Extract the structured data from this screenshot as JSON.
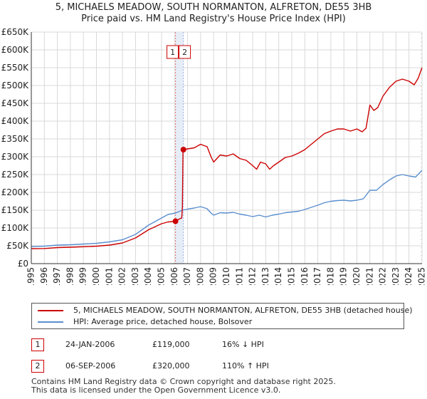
{
  "title_line1": "5, MICHAELS MEADOW, SOUTH NORMANTON, ALFRETON, DE55 3HB",
  "title_line2": "Price paid vs. HM Land Registry's House Price Index (HPI)",
  "colors": {
    "red": "#cc0000",
    "blue": "#5b8fcf",
    "grid": "#d9d9d9",
    "shade": "#dde6f4"
  },
  "chart_data": {
    "type": "line",
    "title": "5, MICHAELS MEADOW, SOUTH NORMANTON, ALFRETON, DE55 3HB — Price paid vs. HM Land Registry's House Price Index (HPI)",
    "xlabel": "",
    "ylabel": "",
    "xlim": [
      1995,
      2025
    ],
    "ylim": [
      0,
      650000
    ],
    "y_ticks": [
      0,
      50000,
      100000,
      150000,
      200000,
      250000,
      300000,
      350000,
      400000,
      450000,
      500000,
      550000,
      600000,
      650000
    ],
    "y_tick_labels": [
      "£0",
      "£50K",
      "£100K",
      "£150K",
      "£200K",
      "£250K",
      "£300K",
      "£350K",
      "£400K",
      "£450K",
      "£500K",
      "£550K",
      "£600K",
      "£650K"
    ],
    "x_ticks": [
      1995,
      1996,
      1997,
      1998,
      1999,
      2000,
      2001,
      2002,
      2003,
      2004,
      2005,
      2006,
      2007,
      2008,
      2009,
      2010,
      2011,
      2012,
      2013,
      2014,
      2015,
      2016,
      2017,
      2018,
      2019,
      2020,
      2021,
      2022,
      2023,
      2024,
      2025
    ],
    "x_tick_labels": [
      "1995",
      "1996",
      "1997",
      "1998",
      "1999",
      "2000",
      "2001",
      "2002",
      "2003",
      "2004",
      "2005",
      "2006",
      "2007",
      "2008",
      "2009",
      "2010",
      "2011",
      "2012",
      "2013",
      "2014",
      "2015",
      "2016",
      "2017",
      "2018",
      "2019",
      "2020",
      "2021",
      "2022",
      "2023",
      "2024",
      "2025"
    ],
    "grid": true,
    "series": [
      {
        "name": "5, MICHAELS MEADOW, SOUTH NORMANTON, ALFRETON, DE55 3HB (detached house)",
        "color": "#cc0000",
        "points": [
          [
            1995.0,
            42000
          ],
          [
            1996.0,
            42500
          ],
          [
            1997.0,
            45000
          ],
          [
            1998.0,
            46000
          ],
          [
            1999.0,
            47500
          ],
          [
            2000.0,
            49000
          ],
          [
            2001.0,
            52000
          ],
          [
            2002.0,
            58000
          ],
          [
            2003.0,
            72000
          ],
          [
            2004.0,
            95000
          ],
          [
            2005.0,
            112000
          ],
          [
            2005.5,
            117000
          ],
          [
            2006.07,
            119000
          ],
          [
            2006.4,
            126000
          ],
          [
            2006.55,
            128000
          ],
          [
            2006.6,
            160000
          ],
          [
            2006.65,
            320000
          ],
          [
            2007.0,
            322000
          ],
          [
            2007.5,
            325000
          ],
          [
            2008.0,
            335000
          ],
          [
            2008.5,
            328000
          ],
          [
            2008.8,
            300000
          ],
          [
            2009.0,
            285000
          ],
          [
            2009.5,
            305000
          ],
          [
            2010.0,
            302000
          ],
          [
            2010.5,
            308000
          ],
          [
            2011.0,
            295000
          ],
          [
            2011.5,
            290000
          ],
          [
            2012.0,
            275000
          ],
          [
            2012.3,
            265000
          ],
          [
            2012.6,
            285000
          ],
          [
            2013.0,
            280000
          ],
          [
            2013.3,
            265000
          ],
          [
            2013.6,
            275000
          ],
          [
            2014.0,
            285000
          ],
          [
            2014.5,
            298000
          ],
          [
            2015.0,
            302000
          ],
          [
            2015.5,
            310000
          ],
          [
            2016.0,
            320000
          ],
          [
            2016.5,
            335000
          ],
          [
            2017.0,
            350000
          ],
          [
            2017.5,
            365000
          ],
          [
            2018.0,
            372000
          ],
          [
            2018.5,
            378000
          ],
          [
            2019.0,
            378000
          ],
          [
            2019.5,
            372000
          ],
          [
            2020.0,
            378000
          ],
          [
            2020.4,
            370000
          ],
          [
            2020.7,
            380000
          ],
          [
            2021.0,
            445000
          ],
          [
            2021.3,
            430000
          ],
          [
            2021.6,
            438000
          ],
          [
            2022.0,
            470000
          ],
          [
            2022.5,
            495000
          ],
          [
            2023.0,
            512000
          ],
          [
            2023.5,
            518000
          ],
          [
            2024.0,
            512000
          ],
          [
            2024.4,
            502000
          ],
          [
            2024.7,
            520000
          ],
          [
            2025.0,
            550000
          ]
        ]
      },
      {
        "name": "HPI: Average price, detached house, Bolsover",
        "color": "#5b8fcf",
        "points": [
          [
            1995.0,
            48000
          ],
          [
            1996.0,
            49000
          ],
          [
            1997.0,
            52000
          ],
          [
            1998.0,
            53000
          ],
          [
            1999.0,
            55000
          ],
          [
            2000.0,
            57000
          ],
          [
            2001.0,
            61000
          ],
          [
            2002.0,
            67000
          ],
          [
            2003.0,
            82000
          ],
          [
            2004.0,
            108000
          ],
          [
            2005.0,
            128000
          ],
          [
            2005.5,
            138000
          ],
          [
            2006.07,
            142000
          ],
          [
            2006.6,
            150000
          ],
          [
            2007.0,
            153000
          ],
          [
            2007.5,
            156000
          ],
          [
            2008.0,
            160000
          ],
          [
            2008.5,
            154000
          ],
          [
            2008.8,
            142000
          ],
          [
            2009.0,
            136000
          ],
          [
            2009.5,
            143000
          ],
          [
            2010.0,
            142000
          ],
          [
            2010.5,
            144000
          ],
          [
            2011.0,
            139000
          ],
          [
            2011.5,
            136000
          ],
          [
            2012.0,
            132000
          ],
          [
            2012.5,
            136000
          ],
          [
            2013.0,
            131000
          ],
          [
            2013.5,
            136000
          ],
          [
            2014.0,
            139000
          ],
          [
            2014.5,
            143000
          ],
          [
            2015.0,
            145000
          ],
          [
            2015.5,
            147000
          ],
          [
            2016.0,
            152000
          ],
          [
            2016.5,
            158000
          ],
          [
            2017.0,
            164000
          ],
          [
            2017.5,
            171000
          ],
          [
            2018.0,
            175000
          ],
          [
            2018.5,
            177000
          ],
          [
            2019.0,
            178000
          ],
          [
            2019.5,
            176000
          ],
          [
            2020.0,
            178000
          ],
          [
            2020.5,
            182000
          ],
          [
            2021.0,
            206000
          ],
          [
            2021.5,
            206000
          ],
          [
            2022.0,
            222000
          ],
          [
            2022.5,
            235000
          ],
          [
            2023.0,
            246000
          ],
          [
            2023.5,
            250000
          ],
          [
            2024.0,
            246000
          ],
          [
            2024.5,
            243000
          ],
          [
            2025.0,
            262000
          ]
        ]
      }
    ],
    "sales": [
      {
        "num": "1",
        "x": 2006.07,
        "y": 119000
      },
      {
        "num": "2",
        "x": 2006.68,
        "y": 320000
      }
    ],
    "shaded_range": [
      2006.07,
      2006.68
    ],
    "future_start": 2024.9
  },
  "legend": {
    "entries": [
      {
        "label": "5, MICHAELS MEADOW, SOUTH NORMANTON, ALFRETON, DE55 3HB (detached house)"
      },
      {
        "label": "HPI: Average price, detached house, Bolsover"
      }
    ]
  },
  "sales_table": [
    {
      "num": "1",
      "date": "24-JAN-2006",
      "price": "£119,000",
      "hpi": "16% ↓ HPI"
    },
    {
      "num": "2",
      "date": "06-SEP-2006",
      "price": "£320,000",
      "hpi": "110% ↑ HPI"
    }
  ],
  "footer": {
    "line1": "Contains HM Land Registry data © Crown copyright and database right 2025.",
    "line2": "This data is licensed under the Open Government Licence v3.0."
  }
}
